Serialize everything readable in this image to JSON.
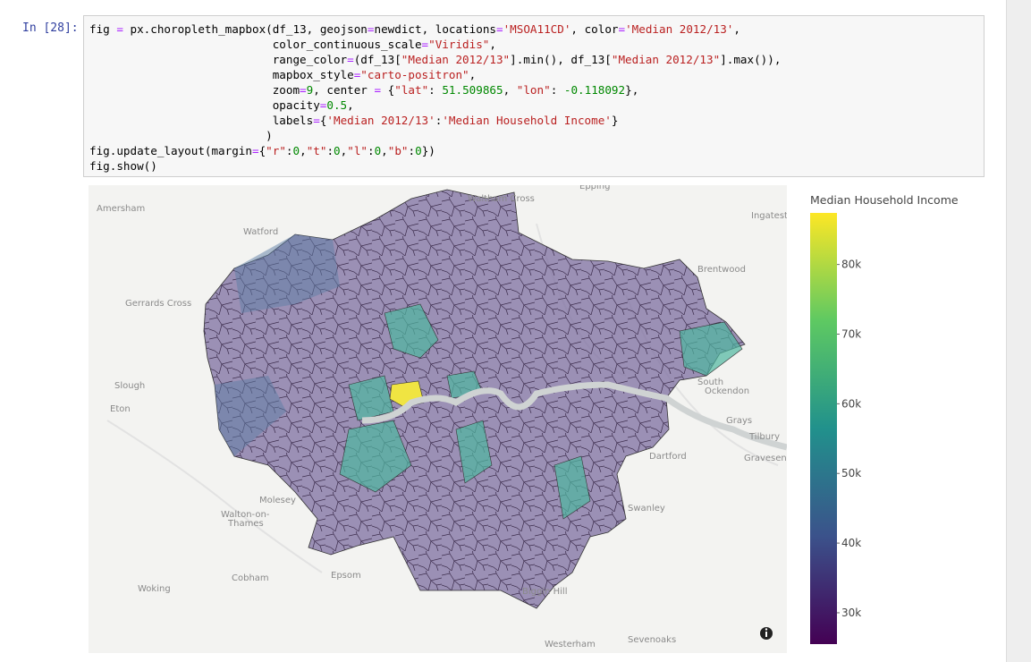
{
  "prompt": "In [28]:",
  "code": {
    "lines": [
      "fig = px.choropleth_mapbox(df_13, geojson=newdict, locations='MSOA11CD', color='Median 2012/13',",
      "                           color_continuous_scale=\"Viridis\",",
      "                           range_color=(df_13[\"Median 2012/13\"].min(), df_13[\"Median 2012/13\"].max()),",
      "                           mapbox_style=\"carto-positron\",",
      "                           zoom=9, center = {\"lat\": 51.509865, \"lon\": -0.118092},",
      "                           opacity=0.5,",
      "                           labels={'Median 2012/13':'Median Household Income'}",
      "                          )",
      "fig.update_layout(margin={\"r\":0,\"t\":0,\"l\":0,\"b\":0})",
      "fig.show()"
    ]
  },
  "map": {
    "place_labels": [
      "Amersham",
      "Watford",
      "Waltham Cross",
      "Epping",
      "Ingatestone",
      "Brentwood",
      "Gerrards Cross",
      "Slough",
      "Eton",
      "South Ockendon",
      "Grays",
      "Tilbury",
      "Dartford",
      "Gravesend",
      "Molesey",
      "Walton-on-Thames",
      "Swanley",
      "Cobham",
      "Epsom",
      "Woking",
      "Biggin Hill",
      "Westerham",
      "Sevenoaks"
    ]
  },
  "colorbar": {
    "title": "Median Household Income",
    "range": [
      25500,
      87400
    ],
    "ticks": [
      {
        "value": 30000,
        "label": "30k"
      },
      {
        "value": 40000,
        "label": "40k"
      },
      {
        "value": 50000,
        "label": "50k"
      },
      {
        "value": 60000,
        "label": "60k"
      },
      {
        "value": 70000,
        "label": "70k"
      },
      {
        "value": 80000,
        "label": "80k"
      }
    ]
  }
}
